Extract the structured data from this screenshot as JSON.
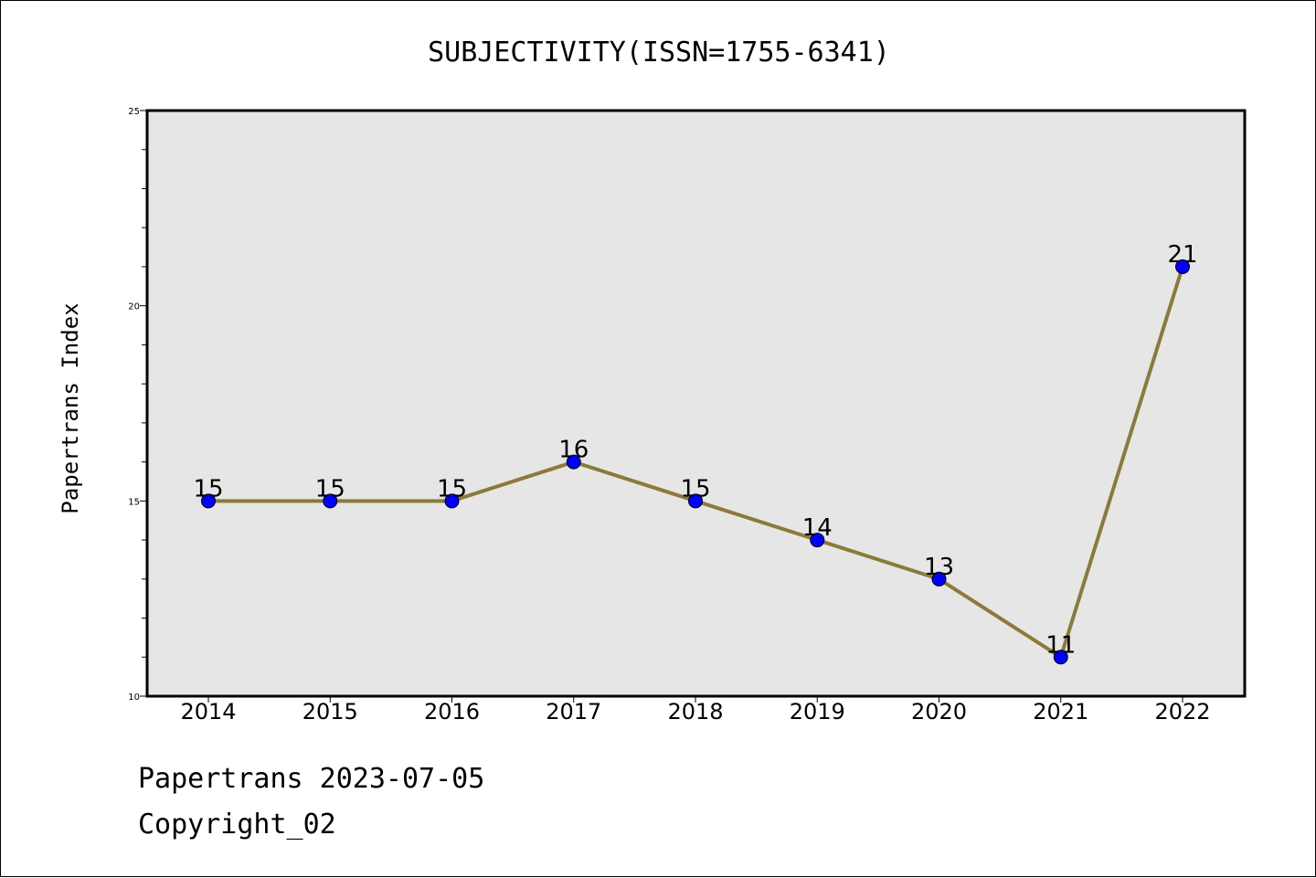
{
  "chart_data": {
    "type": "line",
    "title": "SUBJECTIVITY(ISSN=1755-6341)",
    "xlabel": "",
    "ylabel": "Papertrans Index",
    "categories": [
      "2014",
      "2015",
      "2016",
      "2017",
      "2018",
      "2019",
      "2020",
      "2021",
      "2022"
    ],
    "series": [
      {
        "values": [
          15,
          15,
          15,
          16,
          15,
          14,
          13,
          11,
          21
        ]
      }
    ],
    "ylim": [
      10,
      25
    ],
    "yticks": [
      "10",
      "15",
      "20",
      "25"
    ],
    "grid": false,
    "line_color": "#8b7a3a",
    "marker_color": "#0000ff",
    "plot_background": "#e6e6e6"
  },
  "footer": {
    "line1": "Papertrans 2023-07-05",
    "line2": "Copyright_02"
  }
}
